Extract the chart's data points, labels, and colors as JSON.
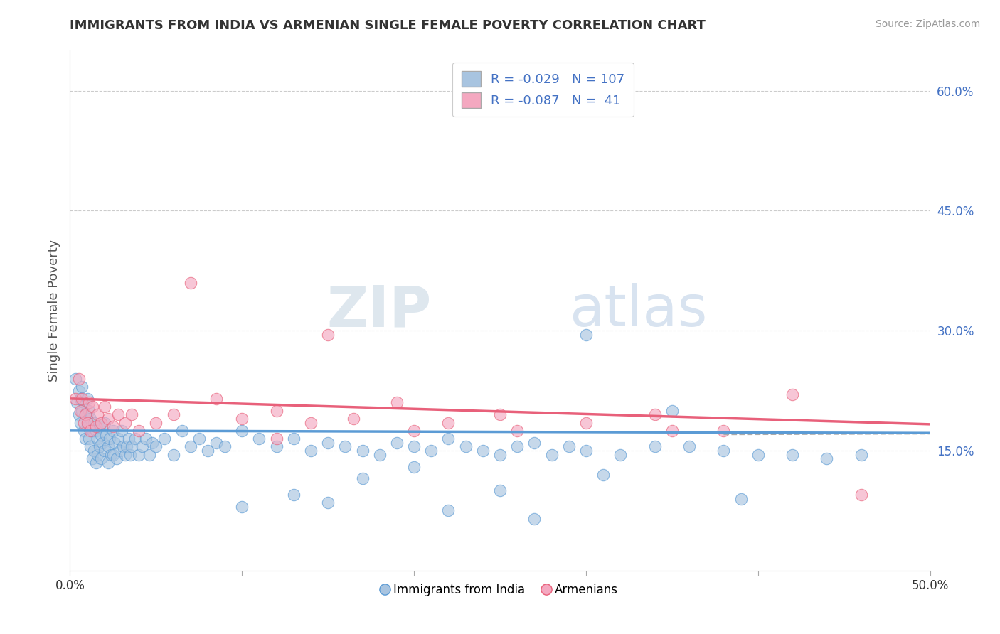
{
  "title": "IMMIGRANTS FROM INDIA VS ARMENIAN SINGLE FEMALE POVERTY CORRELATION CHART",
  "source": "Source: ZipAtlas.com",
  "ylabel": "Single Female Poverty",
  "xlim": [
    0.0,
    0.5
  ],
  "ylim": [
    0.0,
    0.65
  ],
  "yticks": [
    0.15,
    0.3,
    0.45,
    0.6
  ],
  "ytick_labels": [
    "15.0%",
    "30.0%",
    "45.0%",
    "60.0%"
  ],
  "xticks": [
    0.0,
    0.1,
    0.2,
    0.3,
    0.4,
    0.5
  ],
  "xtick_labels": [
    "0.0%",
    "",
    "",
    "",
    "",
    "50.0%"
  ],
  "india_R": "-0.029",
  "india_N": "107",
  "armenia_R": "-0.087",
  "armenia_N": "41",
  "india_color": "#a8c4e0",
  "armenia_color": "#f4a8c0",
  "india_line_color": "#5b9bd5",
  "armenia_line_color": "#e8607a",
  "legend_label_india": "Immigrants from India",
  "legend_label_armenia": "Armenians",
  "watermark_zip": "ZIP",
  "watermark_atlas": "atlas",
  "background_color": "#ffffff",
  "grid_color": "#cccccc",
  "title_color": "#333333",
  "right_tick_color": "#4472c4",
  "india_scatter_x": [
    0.003,
    0.004,
    0.005,
    0.005,
    0.006,
    0.006,
    0.007,
    0.007,
    0.008,
    0.008,
    0.009,
    0.009,
    0.01,
    0.01,
    0.011,
    0.011,
    0.012,
    0.012,
    0.013,
    0.013,
    0.014,
    0.014,
    0.015,
    0.015,
    0.016,
    0.016,
    0.017,
    0.017,
    0.018,
    0.018,
    0.019,
    0.02,
    0.02,
    0.021,
    0.022,
    0.022,
    0.023,
    0.024,
    0.025,
    0.025,
    0.026,
    0.027,
    0.028,
    0.029,
    0.03,
    0.031,
    0.032,
    0.033,
    0.034,
    0.035,
    0.036,
    0.038,
    0.04,
    0.042,
    0.044,
    0.046,
    0.048,
    0.05,
    0.055,
    0.06,
    0.065,
    0.07,
    0.075,
    0.08,
    0.085,
    0.09,
    0.1,
    0.11,
    0.12,
    0.13,
    0.14,
    0.15,
    0.16,
    0.17,
    0.18,
    0.19,
    0.2,
    0.21,
    0.22,
    0.23,
    0.24,
    0.25,
    0.26,
    0.27,
    0.28,
    0.29,
    0.3,
    0.32,
    0.34,
    0.36,
    0.38,
    0.4,
    0.42,
    0.44,
    0.46,
    0.3,
    0.35,
    0.25,
    0.15,
    0.2,
    0.1,
    0.13,
    0.17,
    0.22,
    0.27,
    0.31,
    0.39
  ],
  "india_scatter_y": [
    0.24,
    0.21,
    0.225,
    0.195,
    0.215,
    0.185,
    0.23,
    0.2,
    0.21,
    0.175,
    0.195,
    0.165,
    0.215,
    0.18,
    0.2,
    0.165,
    0.19,
    0.155,
    0.175,
    0.14,
    0.185,
    0.15,
    0.175,
    0.135,
    0.165,
    0.145,
    0.18,
    0.155,
    0.17,
    0.14,
    0.16,
    0.185,
    0.15,
    0.17,
    0.155,
    0.135,
    0.165,
    0.145,
    0.175,
    0.145,
    0.16,
    0.14,
    0.165,
    0.15,
    0.175,
    0.155,
    0.145,
    0.155,
    0.165,
    0.145,
    0.155,
    0.165,
    0.145,
    0.155,
    0.165,
    0.145,
    0.16,
    0.155,
    0.165,
    0.145,
    0.175,
    0.155,
    0.165,
    0.15,
    0.16,
    0.155,
    0.175,
    0.165,
    0.155,
    0.165,
    0.15,
    0.16,
    0.155,
    0.15,
    0.145,
    0.16,
    0.155,
    0.15,
    0.165,
    0.155,
    0.15,
    0.145,
    0.155,
    0.16,
    0.145,
    0.155,
    0.15,
    0.145,
    0.155,
    0.155,
    0.15,
    0.145,
    0.145,
    0.14,
    0.145,
    0.295,
    0.2,
    0.1,
    0.085,
    0.13,
    0.08,
    0.095,
    0.115,
    0.075,
    0.065,
    0.12,
    0.09
  ],
  "armenia_scatter_x": [
    0.003,
    0.005,
    0.006,
    0.007,
    0.008,
    0.009,
    0.01,
    0.011,
    0.012,
    0.013,
    0.015,
    0.016,
    0.018,
    0.02,
    0.022,
    0.025,
    0.028,
    0.032,
    0.036,
    0.04,
    0.05,
    0.06,
    0.07,
    0.085,
    0.1,
    0.12,
    0.14,
    0.165,
    0.19,
    0.22,
    0.26,
    0.3,
    0.34,
    0.38,
    0.42,
    0.46,
    0.15,
    0.2,
    0.25,
    0.12,
    0.35
  ],
  "armenia_scatter_y": [
    0.215,
    0.24,
    0.2,
    0.215,
    0.185,
    0.195,
    0.185,
    0.21,
    0.175,
    0.205,
    0.18,
    0.195,
    0.185,
    0.205,
    0.19,
    0.18,
    0.195,
    0.185,
    0.195,
    0.175,
    0.185,
    0.195,
    0.36,
    0.215,
    0.19,
    0.2,
    0.185,
    0.19,
    0.21,
    0.185,
    0.175,
    0.185,
    0.195,
    0.175,
    0.22,
    0.095,
    0.295,
    0.175,
    0.195,
    0.165,
    0.175
  ],
  "india_line_y0": 0.175,
  "india_line_y1": 0.172,
  "armenia_line_y0": 0.215,
  "armenia_line_y1": 0.183
}
